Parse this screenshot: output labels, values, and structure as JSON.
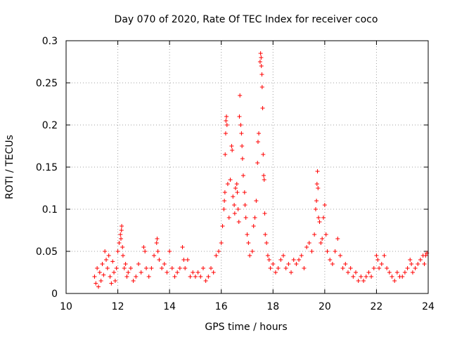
{
  "chart_data": {
    "type": "scatter",
    "title": "Day 070 of 2020, Rate Of TEC Index for receiver coco",
    "xlabel": "GPS time / hours",
    "ylabel": "ROTI / TECUs",
    "xlim": [
      10,
      24
    ],
    "ylim": [
      0,
      0.3
    ],
    "xticks": [
      10,
      12,
      14,
      16,
      18,
      20,
      22,
      24
    ],
    "yticks": [
      0,
      0.05,
      0.1,
      0.15,
      0.2,
      0.25,
      0.3
    ],
    "ytick_labels": [
      "0",
      "0.05",
      "0.1",
      "0.15",
      "0.2",
      "0.25",
      "0.3"
    ],
    "grid": true,
    "marker": "+",
    "series": [
      {
        "name": "ROTI",
        "color": "#ff0000",
        "points": [
          [
            11.1,
            0.02
          ],
          [
            11.15,
            0.012
          ],
          [
            11.2,
            0.03
          ],
          [
            11.25,
            0.008
          ],
          [
            11.3,
            0.025
          ],
          [
            11.35,
            0.015
          ],
          [
            11.4,
            0.035
          ],
          [
            11.45,
            0.022
          ],
          [
            11.5,
            0.05
          ],
          [
            11.55,
            0.04
          ],
          [
            11.6,
            0.03
          ],
          [
            11.65,
            0.045
          ],
          [
            11.7,
            0.02
          ],
          [
            11.75,
            0.012
          ],
          [
            11.8,
            0.038
          ],
          [
            11.85,
            0.025
          ],
          [
            11.9,
            0.015
          ],
          [
            11.95,
            0.03
          ],
          [
            12.0,
            0.05
          ],
          [
            12.05,
            0.06
          ],
          [
            12.1,
            0.07
          ],
          [
            12.12,
            0.065
          ],
          [
            12.14,
            0.075
          ],
          [
            12.15,
            0.08
          ],
          [
            12.18,
            0.055
          ],
          [
            12.2,
            0.045
          ],
          [
            12.25,
            0.03
          ],
          [
            12.3,
            0.035
          ],
          [
            12.35,
            0.02
          ],
          [
            12.4,
            0.025
          ],
          [
            12.5,
            0.03
          ],
          [
            12.6,
            0.015
          ],
          [
            12.7,
            0.02
          ],
          [
            12.8,
            0.035
          ],
          [
            12.9,
            0.025
          ],
          [
            13.0,
            0.055
          ],
          [
            13.05,
            0.05
          ],
          [
            13.1,
            0.03
          ],
          [
            13.2,
            0.02
          ],
          [
            13.3,
            0.03
          ],
          [
            13.4,
            0.045
          ],
          [
            13.5,
            0.06
          ],
          [
            13.52,
            0.065
          ],
          [
            13.55,
            0.05
          ],
          [
            13.6,
            0.04
          ],
          [
            13.7,
            0.03
          ],
          [
            13.8,
            0.035
          ],
          [
            13.9,
            0.025
          ],
          [
            14.0,
            0.05
          ],
          [
            14.1,
            0.03
          ],
          [
            14.2,
            0.02
          ],
          [
            14.3,
            0.025
          ],
          [
            14.4,
            0.03
          ],
          [
            14.5,
            0.055
          ],
          [
            14.55,
            0.04
          ],
          [
            14.6,
            0.03
          ],
          [
            14.7,
            0.04
          ],
          [
            14.8,
            0.02
          ],
          [
            14.9,
            0.025
          ],
          [
            15.0,
            0.02
          ],
          [
            15.1,
            0.025
          ],
          [
            15.2,
            0.02
          ],
          [
            15.3,
            0.03
          ],
          [
            15.4,
            0.015
          ],
          [
            15.5,
            0.02
          ],
          [
            15.6,
            0.03
          ],
          [
            15.7,
            0.025
          ],
          [
            15.8,
            0.045
          ],
          [
            15.9,
            0.05
          ],
          [
            16.0,
            0.06
          ],
          [
            16.05,
            0.08
          ],
          [
            16.1,
            0.1
          ],
          [
            16.12,
            0.11
          ],
          [
            16.14,
            0.12
          ],
          [
            16.15,
            0.165
          ],
          [
            16.17,
            0.19
          ],
          [
            16.18,
            0.205
          ],
          [
            16.2,
            0.21
          ],
          [
            16.22,
            0.2
          ],
          [
            16.25,
            0.13
          ],
          [
            16.3,
            0.09
          ],
          [
            16.35,
            0.135
          ],
          [
            16.4,
            0.175
          ],
          [
            16.42,
            0.17
          ],
          [
            16.45,
            0.115
          ],
          [
            16.5,
            0.105
          ],
          [
            16.52,
            0.095
          ],
          [
            16.55,
            0.125
          ],
          [
            16.6,
            0.13
          ],
          [
            16.62,
            0.12
          ],
          [
            16.65,
            0.1
          ],
          [
            16.68,
            0.085
          ],
          [
            16.7,
            0.21
          ],
          [
            16.72,
            0.235
          ],
          [
            16.75,
            0.2
          ],
          [
            16.78,
            0.19
          ],
          [
            16.8,
            0.175
          ],
          [
            16.82,
            0.16
          ],
          [
            16.85,
            0.14
          ],
          [
            16.9,
            0.12
          ],
          [
            16.92,
            0.105
          ],
          [
            16.95,
            0.09
          ],
          [
            17.0,
            0.07
          ],
          [
            17.05,
            0.06
          ],
          [
            17.1,
            0.045
          ],
          [
            17.2,
            0.05
          ],
          [
            17.25,
            0.08
          ],
          [
            17.3,
            0.09
          ],
          [
            17.35,
            0.11
          ],
          [
            17.4,
            0.155
          ],
          [
            17.42,
            0.18
          ],
          [
            17.45,
            0.19
          ],
          [
            17.5,
            0.275
          ],
          [
            17.52,
            0.285
          ],
          [
            17.54,
            0.28
          ],
          [
            17.55,
            0.27
          ],
          [
            17.57,
            0.26
          ],
          [
            17.58,
            0.245
          ],
          [
            17.6,
            0.22
          ],
          [
            17.62,
            0.165
          ],
          [
            17.64,
            0.14
          ],
          [
            17.66,
            0.135
          ],
          [
            17.68,
            0.095
          ],
          [
            17.7,
            0.07
          ],
          [
            17.75,
            0.06
          ],
          [
            17.8,
            0.045
          ],
          [
            17.85,
            0.04
          ],
          [
            17.9,
            0.03
          ],
          [
            18.0,
            0.035
          ],
          [
            18.1,
            0.025
          ],
          [
            18.2,
            0.03
          ],
          [
            18.3,
            0.04
          ],
          [
            18.4,
            0.045
          ],
          [
            18.5,
            0.03
          ],
          [
            18.6,
            0.035
          ],
          [
            18.7,
            0.025
          ],
          [
            18.8,
            0.04
          ],
          [
            18.9,
            0.035
          ],
          [
            19.0,
            0.04
          ],
          [
            19.1,
            0.045
          ],
          [
            19.2,
            0.03
          ],
          [
            19.3,
            0.055
          ],
          [
            19.4,
            0.06
          ],
          [
            19.5,
            0.05
          ],
          [
            19.6,
            0.07
          ],
          [
            19.65,
            0.1
          ],
          [
            19.68,
            0.11
          ],
          [
            19.7,
            0.13
          ],
          [
            19.72,
            0.145
          ],
          [
            19.74,
            0.125
          ],
          [
            19.76,
            0.09
          ],
          [
            19.8,
            0.085
          ],
          [
            19.85,
            0.06
          ],
          [
            19.9,
            0.065
          ],
          [
            19.95,
            0.09
          ],
          [
            20.0,
            0.105
          ],
          [
            20.05,
            0.07
          ],
          [
            20.1,
            0.05
          ],
          [
            20.2,
            0.04
          ],
          [
            20.3,
            0.035
          ],
          [
            20.4,
            0.05
          ],
          [
            20.5,
            0.065
          ],
          [
            20.6,
            0.045
          ],
          [
            20.7,
            0.03
          ],
          [
            20.8,
            0.035
          ],
          [
            20.9,
            0.025
          ],
          [
            21.0,
            0.03
          ],
          [
            21.1,
            0.02
          ],
          [
            21.2,
            0.025
          ],
          [
            21.3,
            0.015
          ],
          [
            21.4,
            0.02
          ],
          [
            21.5,
            0.015
          ],
          [
            21.6,
            0.02
          ],
          [
            21.7,
            0.025
          ],
          [
            21.8,
            0.02
          ],
          [
            21.9,
            0.03
          ],
          [
            22.0,
            0.045
          ],
          [
            22.05,
            0.04
          ],
          [
            22.1,
            0.03
          ],
          [
            22.2,
            0.035
          ],
          [
            22.3,
            0.045
          ],
          [
            22.4,
            0.03
          ],
          [
            22.5,
            0.025
          ],
          [
            22.6,
            0.02
          ],
          [
            22.7,
            0.015
          ],
          [
            22.8,
            0.025
          ],
          [
            22.9,
            0.02
          ],
          [
            23.0,
            0.02
          ],
          [
            23.1,
            0.025
          ],
          [
            23.2,
            0.03
          ],
          [
            23.3,
            0.04
          ],
          [
            23.35,
            0.035
          ],
          [
            23.4,
            0.025
          ],
          [
            23.5,
            0.03
          ],
          [
            23.6,
            0.035
          ],
          [
            23.7,
            0.04
          ],
          [
            23.8,
            0.045
          ],
          [
            23.85,
            0.035
          ],
          [
            23.9,
            0.045
          ],
          [
            23.95,
            0.048
          ]
        ]
      }
    ]
  }
}
